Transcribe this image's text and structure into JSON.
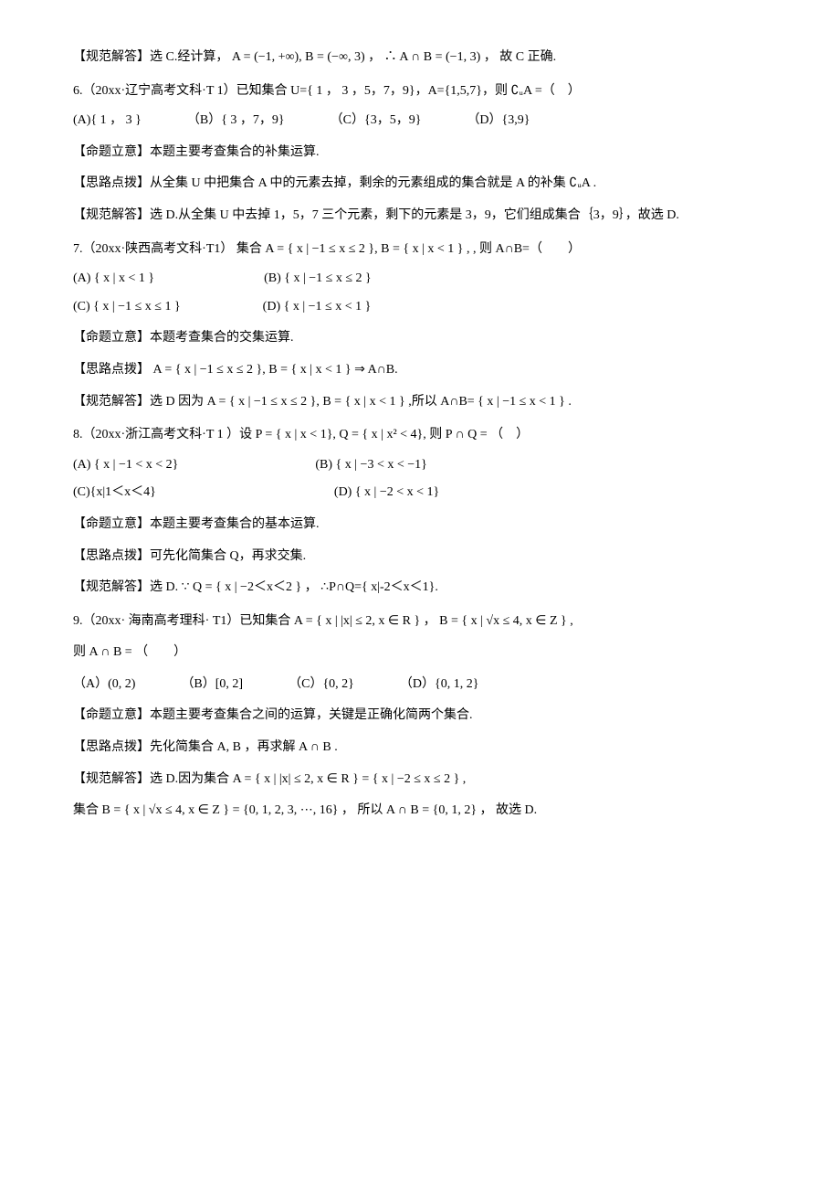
{
  "p5_ans": "【规范解答】选 C.经计算， A = (−1, +∞), B = (−∞, 3) ， ∴ A ∩ B = (−1, 3) ， 故 C 正确.",
  "q6": "6.（20xx·辽宁高考文科·T 1）已知集合 U={ 1 ， 3 ，5，7，9}，A={1,5,7}，则 ∁ᵤA =（　）",
  "q6_opts": {
    "a": "(A){ 1 ， 3 }",
    "b": "（B）{ 3 ，7，9}",
    "c": "（C）{3，5，9}",
    "d": "（D）{3,9}"
  },
  "q6_mt": "【命题立意】本题主要考查集合的补集运算.",
  "q6_sl": "【思路点拨】从全集 U 中把集合 A 中的元素去掉，剩余的元素组成的集合就是 A 的补集 ∁ᵤA .",
  "q6_ans": "【规范解答】选 D.从全集 U 中去掉 1，5，7 三个元素，剩下的元素是 3，9，它们组成集合｛3，9｝，故选 D.",
  "q7": "7.（20xx·陕西高考文科·T1） 集合 A = { x | −1 ≤ x ≤ 2 }, B = { x | x < 1 } ,  , 则 A∩B=（　　）",
  "q7_opts": {
    "a": "(A) { x | x < 1 }",
    "b": "(B) { x | −1 ≤ x ≤ 2 }",
    "c": "(C) { x | −1 ≤ x ≤ 1 }",
    "d": "(D) { x | −1 ≤ x < 1 }"
  },
  "q7_mt": "【命题立意】本题考查集合的交集运算.",
  "q7_sl": "【思路点拨】 A = { x | −1 ≤ x ≤ 2 }, B = { x | x < 1 } ⇒ A∩B.",
  "q7_ans": "【规范解答】选 D  因为 A = { x | −1 ≤ x ≤ 2 }, B = { x | x < 1 } ,所以 A∩B= { x | −1 ≤ x < 1 } .",
  "q8": "8.（20xx·浙江高考文科·T 1 ）设 P = { x | x < 1}, Q = { x | x² < 4}, 则 P ∩ Q = （　）",
  "q8_opts": {
    "a": "(A) { x | −1 < x < 2}",
    "b": "(B) { x | −3 < x < −1}",
    "c": "(C){x|1＜x＜4}",
    "d": "(D) { x | −2 < x < 1}"
  },
  "q8_mt": "【命题立意】本题主要考查集合的基本运算.",
  "q8_sl": "【思路点拨】可先化简集合 Q，再求交集.",
  "q8_ans": "【规范解答】选 D. ∵ Q = { x | −2＜x＜2 } ， ∴P∩Q={ x|-2＜x＜1}.",
  "q9": "9.（20xx· 海南高考理科·  T1）已知集合 A = { x | |x| ≤ 2, x ∈ R } ， B = { x | √x ≤ 4, x ∈ Z } ,",
  "q9_b": "则 A ∩ B = （　　）",
  "q9_opts": {
    "a": "（A）(0, 2)",
    "b": "（B）[0, 2]",
    "c": "（C）{0, 2}",
    "d": "（D）{0, 1, 2}"
  },
  "q9_mt": "【命题立意】本题主要考查集合之间的运算，关键是正确化简两个集合.",
  "q9_sl": "【思路点拨】先化简集合 A, B ，再求解 A ∩ B .",
  "q9_ans1": "【规范解答】选 D.因为集合 A = { x | |x| ≤ 2, x ∈ R } = { x | −2 ≤ x ≤ 2 } ,",
  "q9_ans2": "集合 B = { x | √x ≤ 4, x ∈ Z } = {0, 1, 2, 3, ⋯, 16} ， 所以 A ∩ B = {0, 1, 2} ， 故选 D."
}
